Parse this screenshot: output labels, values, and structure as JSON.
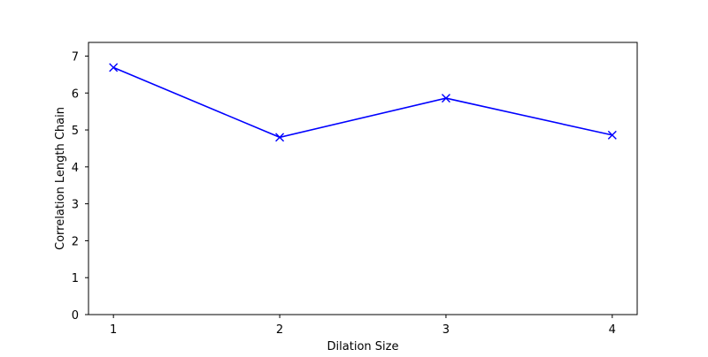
{
  "chart_data": {
    "type": "line",
    "title": "",
    "xlabel": "Dilation Size",
    "ylabel": "Correlation Length Chain",
    "x": [
      1,
      2,
      3,
      4
    ],
    "xticks": [
      1,
      2,
      3,
      4
    ],
    "yticks": [
      0,
      1,
      2,
      3,
      4,
      5,
      6,
      7
    ],
    "xlim": [
      0.85,
      4.15
    ],
    "ylim": [
      0,
      7.37
    ],
    "grid": false,
    "legend": "none",
    "series": [
      {
        "values": [
          6.69,
          4.8,
          5.86,
          4.86
        ],
        "color": "#0000ff",
        "marker": "x"
      }
    ]
  }
}
